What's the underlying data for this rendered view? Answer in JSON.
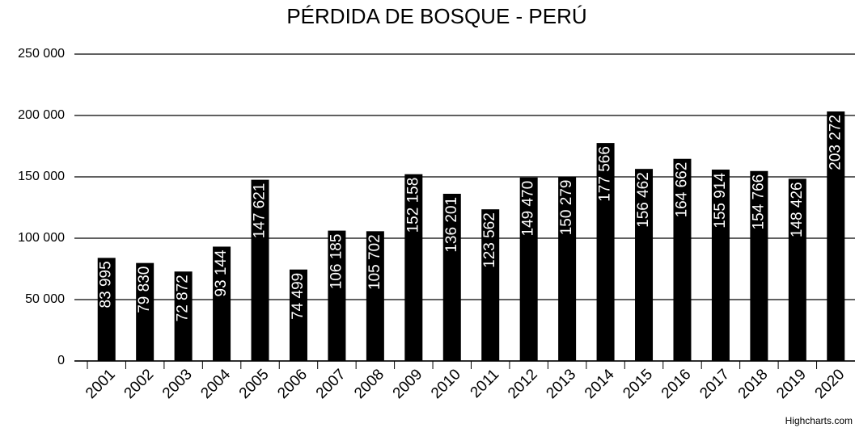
{
  "chart_data": {
    "type": "bar",
    "title": "PÉRDIDA DE BOSQUE - PERÚ",
    "categories": [
      "2001",
      "2002",
      "2003",
      "2004",
      "2005",
      "2006",
      "2007",
      "2008",
      "2009",
      "2010",
      "2011",
      "2012",
      "2013",
      "2014",
      "2015",
      "2016",
      "2017",
      "2018",
      "2019",
      "2020"
    ],
    "values": [
      83995,
      79830,
      72872,
      93144,
      147621,
      74499,
      106185,
      105702,
      152158,
      136201,
      123562,
      149470,
      150279,
      177566,
      156462,
      164662,
      155914,
      154766,
      148426,
      203272
    ],
    "value_labels": [
      "83 995",
      "79 830",
      "72 872",
      "93 144",
      "147 621",
      "74 499",
      "106 185",
      "105 702",
      "152 158",
      "136 201",
      "123 562",
      "149 470",
      "150 279",
      "177 566",
      "156 462",
      "164 662",
      "155 914",
      "154 766",
      "148 426",
      "203 272"
    ],
    "color": "#000000",
    "ylim": [
      0,
      250000
    ],
    "yticks": [
      0,
      {
        "value": 50000,
        "label": "50 000"
      },
      {
        "value": 100000,
        "label": "100 000"
      },
      {
        "value": 150000,
        "label": "150 000"
      },
      {
        "value": 200000,
        "label": "200 000"
      },
      {
        "value": 250000,
        "label": "250 000"
      }
    ],
    "grid": true,
    "credits": "Highcharts.com"
  }
}
